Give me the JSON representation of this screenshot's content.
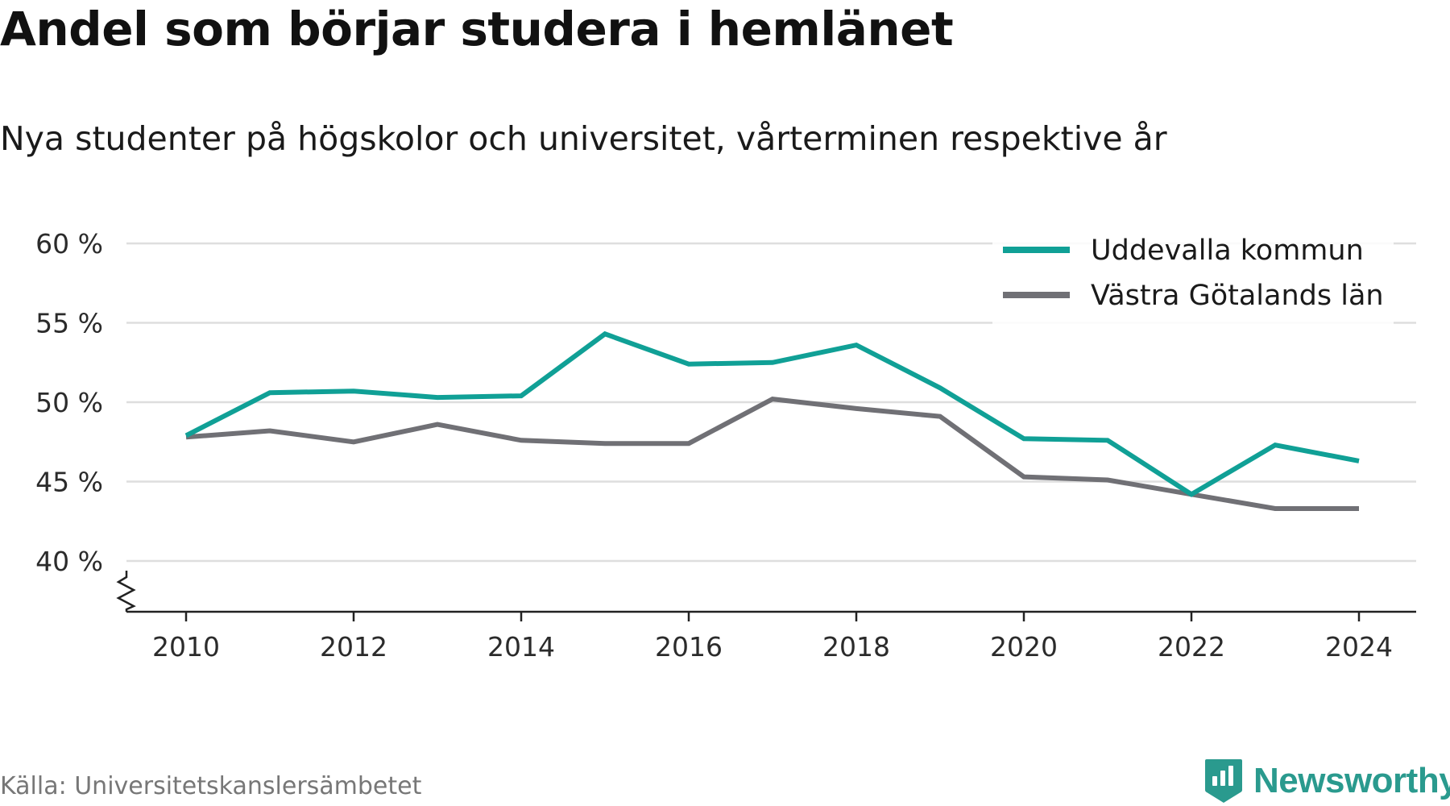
{
  "title": "Andel som börjar studera i hemlänet",
  "subtitle": "Nya studenter på högskolor och universitet, vårterminen respektive år",
  "source": "Källa: Universitetskanslersämbetet",
  "brand": {
    "name": "Newsworthy",
    "icon": "newsworthy-logo-icon",
    "color": "#2a9a8e"
  },
  "chart_data": {
    "type": "line",
    "x": [
      2010,
      2011,
      2012,
      2013,
      2014,
      2015,
      2016,
      2017,
      2018,
      2019,
      2020,
      2021,
      2022,
      2023,
      2024
    ],
    "x_ticks": [
      2010,
      2012,
      2014,
      2016,
      2018,
      2020,
      2022,
      2024
    ],
    "y_ticks": [
      40,
      45,
      50,
      55,
      60
    ],
    "y_tick_labels": [
      "40 %",
      "45 %",
      "50 %",
      "55 %",
      "60 %"
    ],
    "ylim": [
      40,
      60
    ],
    "y_axis_break": true,
    "grid": true,
    "legend_position": "top-right",
    "series": [
      {
        "name": "Uddevalla kommun",
        "color": "#10a096",
        "values": [
          47.9,
          50.6,
          50.7,
          50.3,
          50.4,
          54.3,
          52.4,
          52.5,
          53.6,
          50.9,
          47.7,
          47.6,
          44.2,
          47.3,
          46.3
        ]
      },
      {
        "name": "Västra Götalands län",
        "color": "#707075",
        "values": [
          47.8,
          48.2,
          47.5,
          48.6,
          47.6,
          47.4,
          47.4,
          50.2,
          49.6,
          49.1,
          45.3,
          45.1,
          44.2,
          43.3,
          43.3
        ]
      }
    ]
  }
}
